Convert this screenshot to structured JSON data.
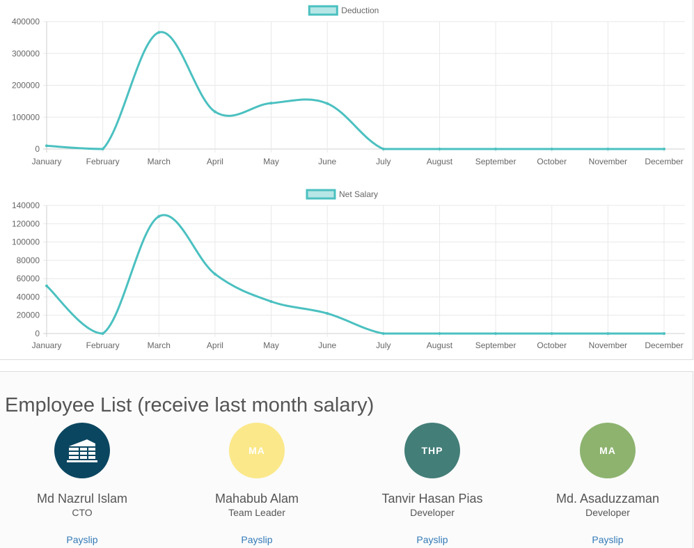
{
  "chart_data": [
    {
      "type": "line",
      "title": "",
      "categories": [
        "January",
        "February",
        "March",
        "April",
        "May",
        "June",
        "July",
        "August",
        "September",
        "October",
        "November",
        "December"
      ],
      "series": [
        {
          "name": "Deduction",
          "values": [
            10000,
            0,
            366000,
            117000,
            144000,
            143000,
            0,
            0,
            0,
            0,
            0,
            0
          ]
        }
      ],
      "yticks": [
        "400000",
        "300000",
        "200000",
        "100000",
        "0"
      ],
      "ylim": [
        0,
        400000
      ],
      "legend": "top-center",
      "grid": true,
      "color": "#4bc0c0"
    },
    {
      "type": "line",
      "title": "",
      "categories": [
        "January",
        "February",
        "March",
        "April",
        "May",
        "June",
        "July",
        "August",
        "September",
        "October",
        "November",
        "December"
      ],
      "series": [
        {
          "name": "Net Salary",
          "values": [
            52000,
            0,
            128000,
            65000,
            35000,
            22000,
            0,
            0,
            0,
            0,
            0,
            0
          ]
        }
      ],
      "yticks": [
        "140000",
        "120000",
        "100000",
        "80000",
        "60000",
        "40000",
        "20000",
        "0"
      ],
      "ylim": [
        0,
        140000
      ],
      "legend": "top-center",
      "grid": true,
      "color": "#4bc0c0"
    }
  ],
  "employees": {
    "title": "Employee List (receive last month salary)",
    "items": [
      {
        "name": "Md Nazrul Islam",
        "role": "CTO",
        "link": "Payslip",
        "avatar_text": "",
        "avatar_icon": "building-icon",
        "avatar_color": "#0b4660"
      },
      {
        "name": "Mahabub Alam",
        "role": "Team Leader",
        "link": "Payslip",
        "avatar_text": "MA",
        "avatar_color": "#fbe88a"
      },
      {
        "name": "Tanvir Hasan Pias",
        "role": "Developer",
        "link": "Payslip",
        "avatar_text": "THP",
        "avatar_color": "#437e78"
      },
      {
        "name": "Md. Asaduzzaman",
        "role": "Developer",
        "link": "Payslip",
        "avatar_text": "MA",
        "avatar_color": "#8db36f"
      }
    ]
  }
}
